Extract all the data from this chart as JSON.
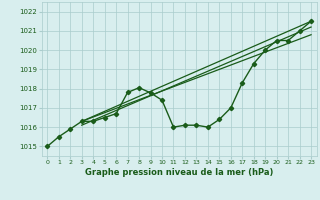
{
  "x": [
    0,
    1,
    2,
    3,
    4,
    5,
    6,
    7,
    8,
    9,
    10,
    11,
    12,
    13,
    14,
    15,
    16,
    17,
    18,
    19,
    20,
    21,
    22,
    23
  ],
  "main_y": [
    1015.0,
    1015.5,
    1015.9,
    1016.3,
    1016.3,
    1016.5,
    1016.7,
    1017.8,
    1018.05,
    1017.78,
    1017.4,
    1016.0,
    1016.1,
    1016.1,
    1016.0,
    1016.4,
    1017.0,
    1018.3,
    1019.3,
    1020.0,
    1020.5,
    1020.5,
    1021.0,
    1021.5
  ],
  "line1_x": [
    3,
    23
  ],
  "line1_y": [
    1016.3,
    1021.5
  ],
  "line2_x": [
    3,
    23
  ],
  "line2_y": [
    1016.3,
    1020.8
  ],
  "line3_x": [
    3,
    23
  ],
  "line3_y": [
    1016.1,
    1021.2
  ],
  "xlabel": "Graphe pression niveau de la mer (hPa)",
  "ylim": [
    1014.5,
    1022.5
  ],
  "xlim": [
    -0.5,
    23.5
  ],
  "yticks": [
    1015,
    1016,
    1017,
    1018,
    1019,
    1020,
    1021,
    1022
  ],
  "xticks": [
    0,
    1,
    2,
    3,
    4,
    5,
    6,
    7,
    8,
    9,
    10,
    11,
    12,
    13,
    14,
    15,
    16,
    17,
    18,
    19,
    20,
    21,
    22,
    23
  ],
  "line_color": "#1a5c1a",
  "bg_color": "#d8eeee",
  "grid_color": "#aacccc"
}
